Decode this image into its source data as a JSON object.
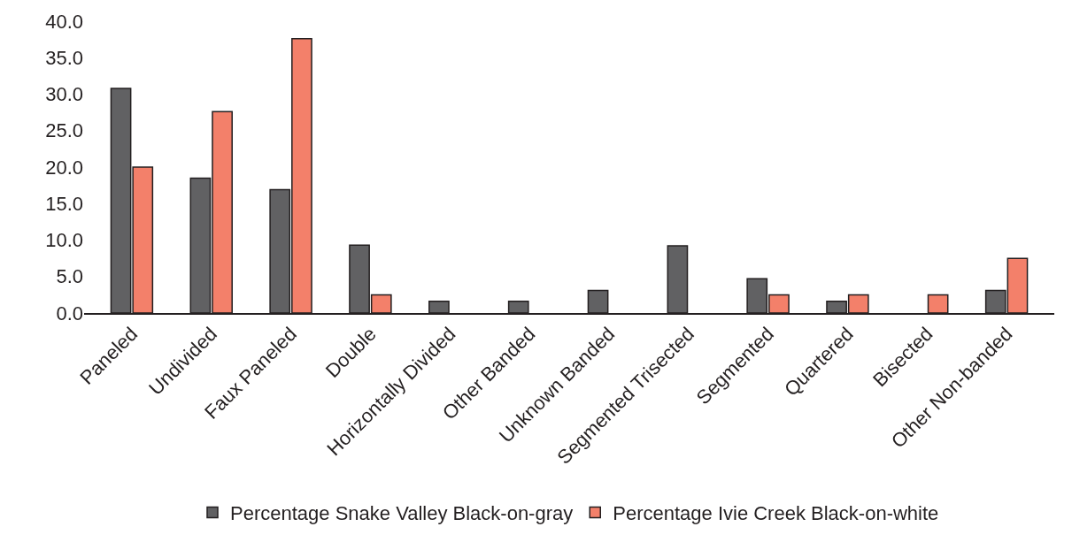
{
  "chart_data": {
    "type": "bar",
    "categories": [
      "Paneled",
      "Undivided",
      "Faux Paneled",
      "Double",
      "Horizontally Divided",
      "Other Banded",
      "Unknown Banded",
      "Segmented Trisected",
      "Segmented",
      "Quartered",
      "Bisected",
      "Other Non-banded"
    ],
    "series": [
      {
        "name": "Percentage Snake Valley Black-on-gray",
        "color": "#616163",
        "values": [
          30.8,
          18.5,
          16.9,
          9.3,
          1.6,
          1.6,
          3.1,
          9.2,
          4.7,
          1.6,
          null,
          3.1
        ]
      },
      {
        "name": "Percentage Ivie Creek Black-on-white",
        "color": "#f3806a",
        "values": [
          20.0,
          27.6,
          37.6,
          2.5,
          null,
          null,
          null,
          null,
          2.5,
          2.5,
          2.5,
          7.5
        ]
      }
    ],
    "ylim": [
      0,
      40
    ],
    "yticks": [
      {
        "value": 0,
        "label": "0.0"
      },
      {
        "value": 5,
        "label": "5.0"
      },
      {
        "value": 10,
        "label": "10.0"
      },
      {
        "value": 15,
        "label": "15.0"
      },
      {
        "value": 20,
        "label": "20.0"
      },
      {
        "value": 25,
        "label": "25.0"
      },
      {
        "value": 30,
        "label": "30.0"
      },
      {
        "value": 35,
        "label": "35.0"
      },
      {
        "value": 40,
        "label": "40.0"
      }
    ],
    "legend": "bottom"
  }
}
